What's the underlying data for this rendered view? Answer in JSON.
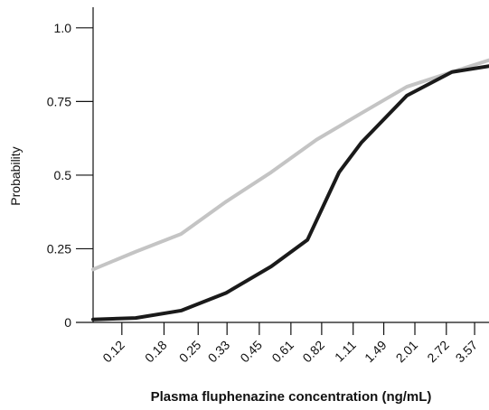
{
  "chart_data": {
    "type": "line",
    "xlabel": "Plasma fluphenazine concentration (ng/mL)",
    "ylabel": "Probability",
    "xscale": "log",
    "xlim": [
      0.091,
      4.1
    ],
    "xticks": [
      0.12,
      0.18,
      0.25,
      0.33,
      0.45,
      0.61,
      0.82,
      1.11,
      1.49,
      2.01,
      2.72,
      3.57
    ],
    "ylim": [
      0,
      1.07
    ],
    "yticks": [
      0,
      0.25,
      0.5,
      0.75,
      {
        "value": 1,
        "label": "1.0"
      }
    ],
    "grid": false,
    "series": [
      {
        "color": "#c4c4c4",
        "x": [
          0.091,
          0.137,
          0.212,
          0.327,
          0.505,
          0.78,
          1.2,
          1.86,
          2.87,
          4.1
        ],
        "values": [
          0.18,
          0.24,
          0.3,
          0.41,
          0.51,
          0.62,
          0.71,
          0.8,
          0.85,
          0.89
        ]
      },
      {
        "color": "#1a1a1a",
        "x": [
          0.091,
          0.137,
          0.212,
          0.327,
          0.505,
          0.715,
          0.97,
          1.2,
          1.86,
          2.87,
          4.1
        ],
        "values": [
          0.01,
          0.015,
          0.04,
          0.1,
          0.19,
          0.28,
          0.51,
          0.61,
          0.77,
          0.85,
          0.87
        ]
      }
    ]
  }
}
